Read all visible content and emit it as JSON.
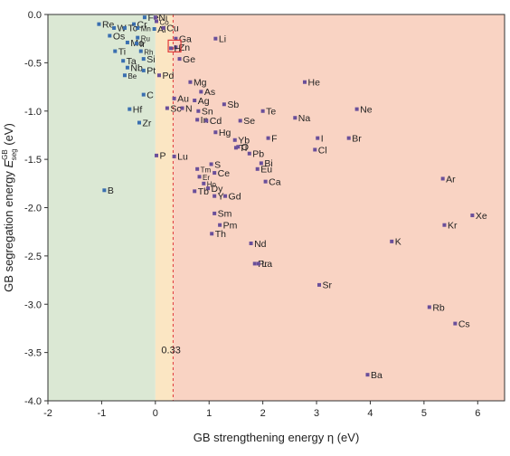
{
  "chart_data": {
    "type": "scatter",
    "xlabel": "GB strengthening energy  η  (eV)",
    "ylabel_main": "GB segregation energy ",
    "ylabel_symbol": "E",
    "ylabel_sup": "GB",
    "ylabel_sub": "seg",
    "ylabel_unit": " (eV)",
    "xlim": [
      -2,
      6.5
    ],
    "ylim": [
      -4.0,
      0.0
    ],
    "x_ticks": [
      -2,
      -1,
      0,
      1,
      2,
      3,
      4,
      5,
      6
    ],
    "x_tick_labels": [
      "-2",
      "-1",
      "0",
      "1",
      "2",
      "3",
      "4",
      "5",
      "6"
    ],
    "y_ticks": [
      0.0,
      -0.5,
      -1.0,
      -1.5,
      -2.0,
      -2.5,
      -3.0,
      -3.5,
      -4.0
    ],
    "y_tick_labels": [
      "0.0",
      "-0.5",
      "-1.0",
      "-1.5",
      "-2.0",
      "-2.5",
      "-3.0",
      "-3.5",
      "-4.0"
    ],
    "regions": [
      {
        "x_from": -2.0,
        "x_to": 0.0,
        "color": "#dbe8d4"
      },
      {
        "x_from": 0.0,
        "x_to": 0.33,
        "color": "#fbe6c3"
      },
      {
        "x_from": 0.33,
        "x_to": 6.5,
        "color": "#f9d3c3"
      }
    ],
    "threshold": {
      "x": 0.33,
      "label": "0.33",
      "color": "#e03a3a"
    },
    "highlight": {
      "element": "H",
      "color": "#e03a3a"
    },
    "colors": {
      "left_point": "#3a6fb0",
      "right_point": "#6a4f9a"
    },
    "points": [
      {
        "el": "Fe",
        "x": -0.2,
        "y": -0.03,
        "small": false
      },
      {
        "el": "Ni",
        "x": 0.0,
        "y": -0.03,
        "small": false
      },
      {
        "el": "Co",
        "x": 0.02,
        "y": -0.07,
        "small": true
      },
      {
        "el": "Re",
        "x": -1.05,
        "y": -0.1,
        "small": false
      },
      {
        "el": "Cr",
        "x": -0.4,
        "y": -0.1,
        "small": false
      },
      {
        "el": "Mn",
        "x": -0.33,
        "y": -0.14,
        "small": true
      },
      {
        "el": "W",
        "x": -0.77,
        "y": -0.14,
        "small": false
      },
      {
        "el": "Tc",
        "x": -0.57,
        "y": -0.14,
        "small": false
      },
      {
        "el": "Al",
        "x": -0.02,
        "y": -0.15,
        "small": false
      },
      {
        "el": "Cu",
        "x": 0.15,
        "y": -0.14,
        "small": false
      },
      {
        "el": "Os",
        "x": -0.85,
        "y": -0.22,
        "small": false
      },
      {
        "el": "Ru",
        "x": -0.33,
        "y": -0.24,
        "small": true
      },
      {
        "el": "Ga",
        "x": 0.38,
        "y": -0.25,
        "small": false
      },
      {
        "el": "Li",
        "x": 1.12,
        "y": -0.25,
        "small": false
      },
      {
        "el": "Mo",
        "x": -0.52,
        "y": -0.29,
        "small": false
      },
      {
        "el": "Ir",
        "x": -0.35,
        "y": -0.3,
        "small": false
      },
      {
        "el": "Zn",
        "x": 0.38,
        "y": -0.34,
        "small": false
      },
      {
        "el": "H",
        "x": 0.29,
        "y": -0.35,
        "small": false
      },
      {
        "el": "Rh",
        "x": -0.27,
        "y": -0.38,
        "small": true
      },
      {
        "el": "Ti",
        "x": -0.75,
        "y": -0.38,
        "small": false
      },
      {
        "el": "Ge",
        "x": 0.45,
        "y": -0.46,
        "small": false
      },
      {
        "el": "Si",
        "x": -0.22,
        "y": -0.46,
        "small": false
      },
      {
        "el": "Ta",
        "x": -0.6,
        "y": -0.48,
        "small": false
      },
      {
        "el": "Nb",
        "x": -0.52,
        "y": -0.55,
        "small": false
      },
      {
        "el": "Pt",
        "x": -0.22,
        "y": -0.58,
        "small": false
      },
      {
        "el": "Be",
        "x": -0.57,
        "y": -0.63,
        "small": true
      },
      {
        "el": "Pd",
        "x": 0.07,
        "y": -0.63,
        "small": false
      },
      {
        "el": "Mg",
        "x": 0.65,
        "y": -0.7,
        "small": false
      },
      {
        "el": "He",
        "x": 2.78,
        "y": -0.7,
        "small": false
      },
      {
        "el": "As",
        "x": 0.85,
        "y": -0.8,
        "small": false
      },
      {
        "el": "C",
        "x": -0.22,
        "y": -0.83,
        "small": false
      },
      {
        "el": "Au",
        "x": 0.35,
        "y": -0.87,
        "small": false
      },
      {
        "el": "Ag",
        "x": 0.73,
        "y": -0.89,
        "small": false
      },
      {
        "el": "Sb",
        "x": 1.28,
        "y": -0.93,
        "small": false
      },
      {
        "el": "N",
        "x": 0.5,
        "y": -0.97,
        "small": false
      },
      {
        "el": "Sc",
        "x": 0.22,
        "y": -0.97,
        "small": false
      },
      {
        "el": "Hf",
        "x": -0.48,
        "y": -0.98,
        "small": false
      },
      {
        "el": "Sn",
        "x": 0.8,
        "y": -1.0,
        "small": false
      },
      {
        "el": "Te",
        "x": 2.0,
        "y": -1.0,
        "small": false
      },
      {
        "el": "Ne",
        "x": 3.75,
        "y": -0.98,
        "small": false
      },
      {
        "el": "Na",
        "x": 2.6,
        "y": -1.07,
        "small": false
      },
      {
        "el": "In",
        "x": 0.78,
        "y": -1.09,
        "small": false
      },
      {
        "el": "Cd",
        "x": 0.95,
        "y": -1.1,
        "small": false
      },
      {
        "el": "Se",
        "x": 1.58,
        "y": -1.1,
        "small": false
      },
      {
        "el": "Zr",
        "x": -0.3,
        "y": -1.12,
        "small": false
      },
      {
        "el": "Hg",
        "x": 1.12,
        "y": -1.22,
        "small": false
      },
      {
        "el": "Yb",
        "x": 1.48,
        "y": -1.3,
        "small": false
      },
      {
        "el": "F",
        "x": 2.1,
        "y": -1.28,
        "small": false
      },
      {
        "el": "I",
        "x": 3.02,
        "y": -1.28,
        "small": false
      },
      {
        "el": "Br",
        "x": 3.6,
        "y": -1.28,
        "small": false
      },
      {
        "el": "O",
        "x": 1.54,
        "y": -1.37,
        "small": false
      },
      {
        "el": "Tl",
        "x": 1.5,
        "y": -1.38,
        "small": false
      },
      {
        "el": "Cl",
        "x": 2.97,
        "y": -1.4,
        "small": false
      },
      {
        "el": "Pb",
        "x": 1.75,
        "y": -1.44,
        "small": false
      },
      {
        "el": "P",
        "x": 0.02,
        "y": -1.46,
        "small": false
      },
      {
        "el": "Lu",
        "x": 0.35,
        "y": -1.47,
        "small": false
      },
      {
        "el": "Bi",
        "x": 1.97,
        "y": -1.54,
        "small": false
      },
      {
        "el": "S",
        "x": 1.04,
        "y": -1.55,
        "small": false
      },
      {
        "el": "Tm",
        "x": 0.78,
        "y": -1.6,
        "small": true
      },
      {
        "el": "Eu",
        "x": 1.9,
        "y": -1.6,
        "small": false
      },
      {
        "el": "Ce",
        "x": 1.1,
        "y": -1.64,
        "small": false
      },
      {
        "el": "Er",
        "x": 0.82,
        "y": -1.68,
        "small": true
      },
      {
        "el": "Ho",
        "x": 0.9,
        "y": -1.75,
        "small": true
      },
      {
        "el": "Ca",
        "x": 2.05,
        "y": -1.73,
        "small": false
      },
      {
        "el": "Ar",
        "x": 5.35,
        "y": -1.7,
        "small": false
      },
      {
        "el": "B",
        "x": -0.95,
        "y": -1.82,
        "small": false
      },
      {
        "el": "Dy",
        "x": 0.98,
        "y": -1.8,
        "small": false
      },
      {
        "el": "Tb",
        "x": 0.73,
        "y": -1.83,
        "small": false
      },
      {
        "el": "Y",
        "x": 1.1,
        "y": -1.88,
        "small": false
      },
      {
        "el": "Gd",
        "x": 1.3,
        "y": -1.88,
        "small": false
      },
      {
        "el": "Sm",
        "x": 1.1,
        "y": -2.06,
        "small": false
      },
      {
        "el": "Xe",
        "x": 5.9,
        "y": -2.08,
        "small": false
      },
      {
        "el": "Pm",
        "x": 1.2,
        "y": -2.18,
        "small": false
      },
      {
        "el": "Kr",
        "x": 5.38,
        "y": -2.18,
        "small": false
      },
      {
        "el": "Th",
        "x": 1.05,
        "y": -2.27,
        "small": false
      },
      {
        "el": "Nd",
        "x": 1.78,
        "y": -2.37,
        "small": false
      },
      {
        "el": "K",
        "x": 4.4,
        "y": -2.35,
        "small": false
      },
      {
        "el": "Pr",
        "x": 1.85,
        "y": -2.58,
        "small": false
      },
      {
        "el": "La",
        "x": 1.92,
        "y": -2.58,
        "small": false
      },
      {
        "el": "Sr",
        "x": 3.05,
        "y": -2.8,
        "small": false
      },
      {
        "el": "Rb",
        "x": 5.1,
        "y": -3.03,
        "small": false
      },
      {
        "el": "Cs",
        "x": 5.58,
        "y": -3.2,
        "small": false
      },
      {
        "el": "Ba",
        "x": 3.95,
        "y": -3.73,
        "small": false
      }
    ]
  }
}
